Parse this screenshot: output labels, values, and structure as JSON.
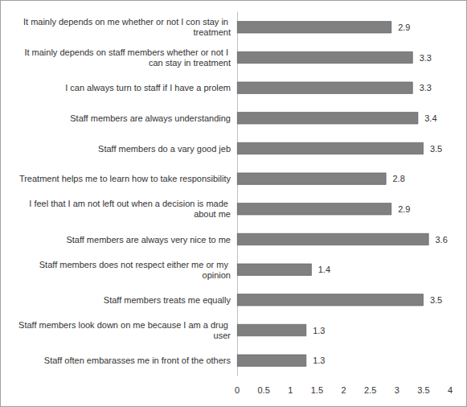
{
  "chart_data": {
    "type": "bar",
    "orientation": "horizontal",
    "categories": [
      "It mainly depends on me whether or not I con stay in treatment",
      "It mainly depends on staff members whether or not I can stay in treatment",
      "I can always turn to staff if I have a prolem",
      "Staff members are always understanding",
      "Staff members do a vary good jeb",
      "Treatment helps me to learn how to take responsibility",
      "I feel that I am not left out when a decision is made about me",
      "Staff members are always very nice to me",
      "Staff members does not respect either me or my opinion",
      "Staff members treats me equally",
      "Staff members look down on me because I am a drug user",
      "Staff often embarasses me in front of the others"
    ],
    "values": [
      2.9,
      3.3,
      3.3,
      3.4,
      3.5,
      2.8,
      2.9,
      3.6,
      1.4,
      3.5,
      1.3,
      1.3
    ],
    "color": "#808080",
    "xlim": [
      0,
      4
    ],
    "xticks": [
      0,
      0.5,
      1,
      1.5,
      2,
      2.5,
      3,
      3.5,
      4
    ],
    "grid": false,
    "data_labels": true
  }
}
